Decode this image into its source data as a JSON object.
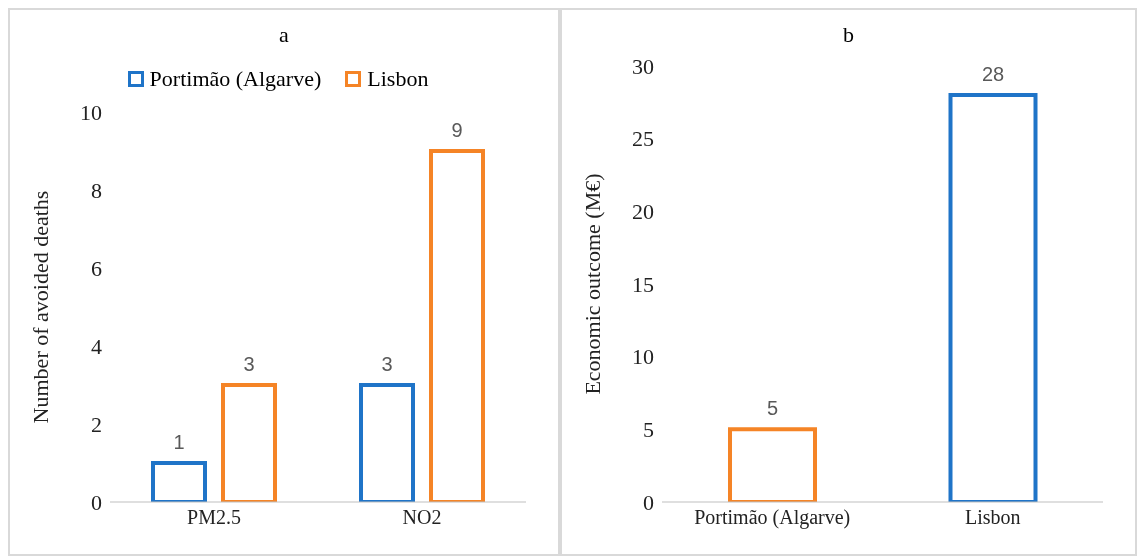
{
  "chart_data": [
    {
      "type": "bar",
      "title": "a",
      "categories": [
        "PM2.5",
        "NO2"
      ],
      "ylabel": "Number of avoided deaths",
      "series": [
        {
          "name": "Portimão (Algarve)",
          "color": "#1f74c8",
          "values": [
            1,
            3
          ]
        },
        {
          "name": "Lisbon",
          "color": "#f58426",
          "values": [
            3,
            9
          ]
        }
      ],
      "ylim": [
        0,
        10
      ],
      "yticks": [
        0,
        2,
        4,
        6,
        8,
        10
      ],
      "grid": false,
      "legend": "top",
      "data_labels": true
    },
    {
      "type": "bar",
      "title": "b",
      "categories": [
        "Portimão (Algarve)",
        "Lisbon"
      ],
      "ylabel": "Economic outcome (M€)",
      "values": [
        5,
        28
      ],
      "colors": [
        "#f58426",
        "#1f74c8"
      ],
      "ylim": [
        0,
        30
      ],
      "yticks": [
        0,
        5,
        10,
        15,
        20,
        25,
        30
      ],
      "grid": false,
      "data_labels": true
    }
  ]
}
